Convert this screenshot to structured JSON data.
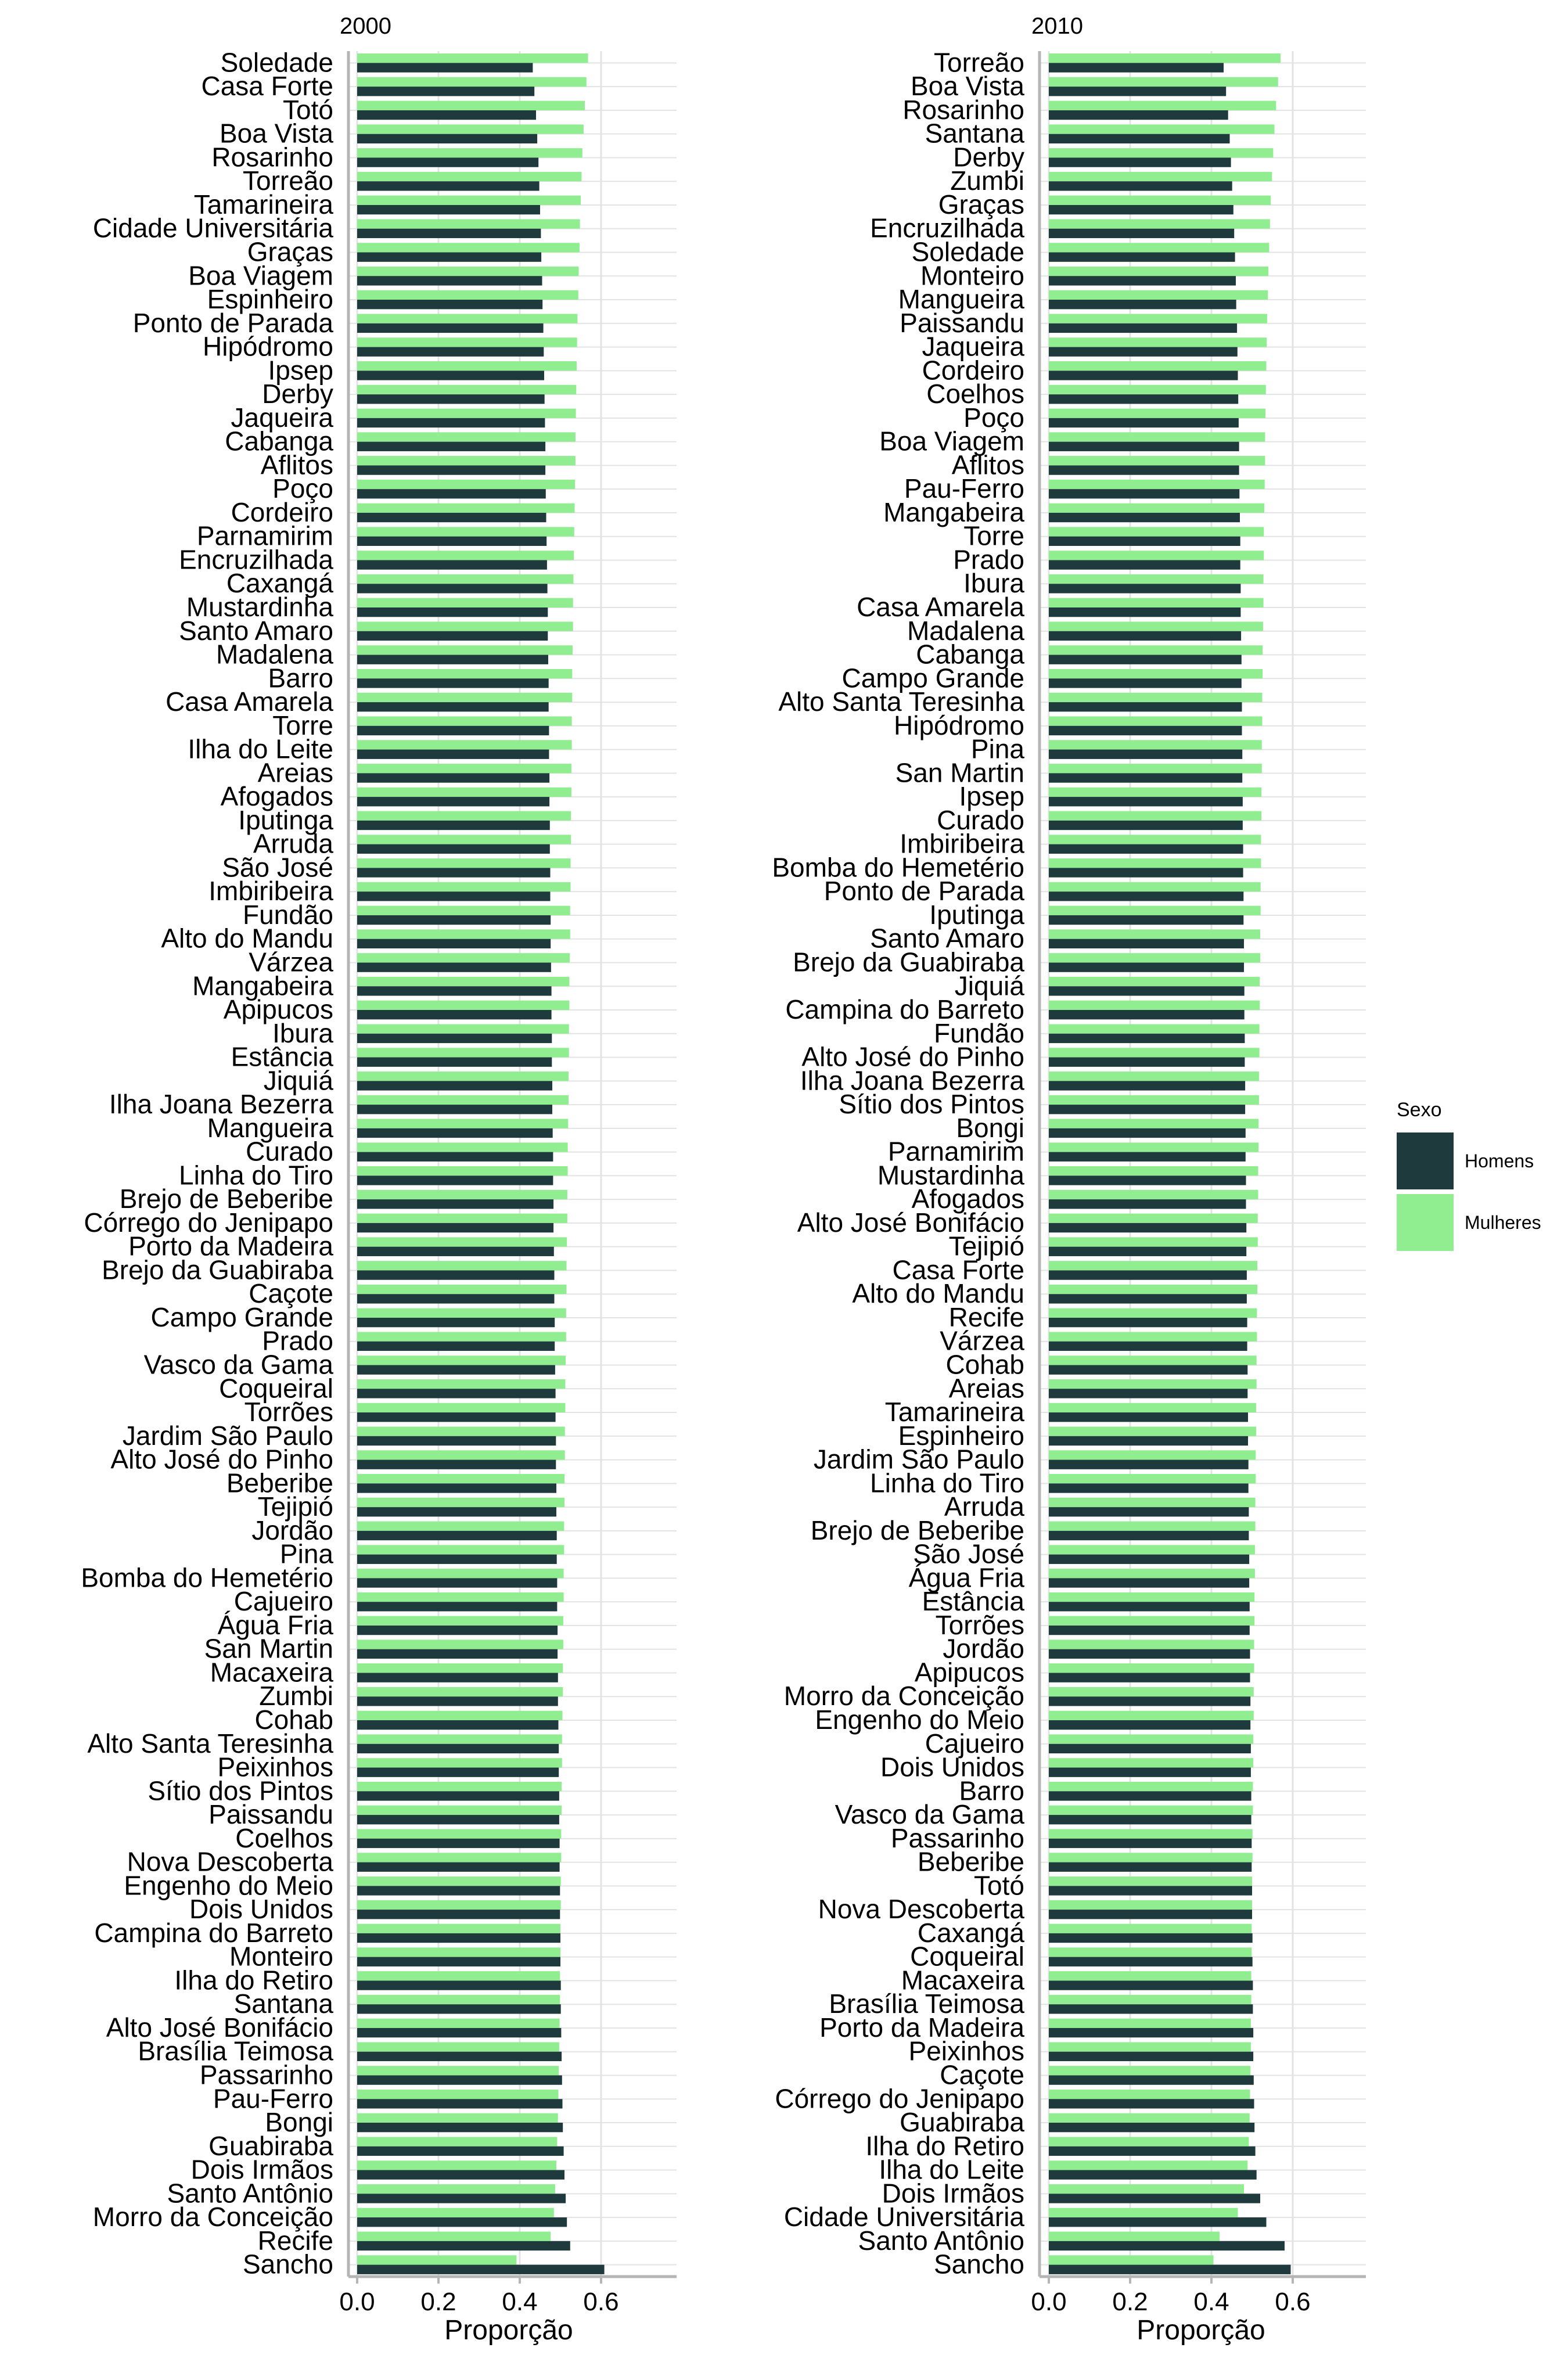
{
  "chart_data": [
    {
      "type": "bar",
      "orientation": "horizontal",
      "title": "2000",
      "xlabel": "Proporção",
      "xlim": [
        0.0,
        0.75
      ],
      "xticks": [
        0.0,
        0.2,
        0.4,
        0.6
      ],
      "xtick_labels": [
        "0.0",
        "0.2",
        "0.4",
        "0.6"
      ],
      "grid": true,
      "categories": [
        "Soledade",
        "Casa Forte",
        "Totó",
        "Boa Vista",
        "Rosarinho",
        "Torreão",
        "Tamarineira",
        "Cidade Universitária",
        "Graças",
        "Boa Viagem",
        "Espinheiro",
        "Ponto de Parada",
        "Hipódromo",
        "Ipsep",
        "Derby",
        "Jaqueira",
        "Cabanga",
        "Aflitos",
        "Poço",
        "Cordeiro",
        "Parnamirim",
        "Encruzilhada",
        "Caxangá",
        "Mustardinha",
        "Santo Amaro",
        "Madalena",
        "Barro",
        "Casa Amarela",
        "Torre",
        "Ilha do Leite",
        "Areias",
        "Afogados",
        "Iputinga",
        "Arruda",
        "São José",
        "Imbiribeira",
        "Fundão",
        "Alto do Mandu",
        "Várzea",
        "Mangabeira",
        "Apipucos",
        "Ibura",
        "Estância",
        "Jiquiá",
        "Ilha Joana Bezerra",
        "Mangueira",
        "Curado",
        "Linha do Tiro",
        "Brejo de Beberibe",
        "Córrego do Jenipapo",
        "Porto da Madeira",
        "Brejo da Guabiraba",
        "Caçote",
        "Campo Grande",
        "Prado",
        "Vasco da Gama",
        "Coqueiral",
        "Torrões",
        "Jardim São Paulo",
        "Alto José do Pinho",
        "Beberibe",
        "Tejipió",
        "Jordão",
        "Pina",
        "Bomba do Hemetério",
        "Cajueiro",
        "Água Fria",
        "San Martin",
        "Macaxeira",
        "Zumbi",
        "Cohab",
        "Alto Santa Teresinha",
        "Peixinhos",
        "Sítio dos Pintos",
        "Paissandu",
        "Coelhos",
        "Nova Descoberta",
        "Engenho do Meio",
        "Dois Unidos",
        "Campina do Barreto",
        "Monteiro",
        "Ilha do Retiro",
        "Santana",
        "Alto José Bonifácio",
        "Brasília Teimosa",
        "Passarinho",
        "Pau-Ferro",
        "Bongi",
        "Guabiraba",
        "Dois Irmãos",
        "Santo Antônio",
        "Morro da Conceição",
        "Recife",
        "Sancho"
      ],
      "series": [
        {
          "name": "Homens",
          "values": [
            0.432,
            0.436,
            0.44,
            0.443,
            0.446,
            0.448,
            0.45,
            0.452,
            0.453,
            0.455,
            0.456,
            0.458,
            0.459,
            0.46,
            0.461,
            0.462,
            0.463,
            0.463,
            0.464,
            0.465,
            0.466,
            0.467,
            0.468,
            0.469,
            0.469,
            0.47,
            0.471,
            0.471,
            0.472,
            0.472,
            0.473,
            0.473,
            0.474,
            0.474,
            0.475,
            0.475,
            0.476,
            0.476,
            0.477,
            0.478,
            0.478,
            0.479,
            0.479,
            0.48,
            0.48,
            0.481,
            0.482,
            0.482,
            0.483,
            0.483,
            0.484,
            0.485,
            0.485,
            0.486,
            0.486,
            0.487,
            0.488,
            0.488,
            0.489,
            0.489,
            0.49,
            0.49,
            0.491,
            0.491,
            0.492,
            0.492,
            0.493,
            0.493,
            0.494,
            0.494,
            0.495,
            0.496,
            0.496,
            0.497,
            0.497,
            0.498,
            0.498,
            0.499,
            0.499,
            0.5,
            0.5,
            0.501,
            0.501,
            0.502,
            0.503,
            0.504,
            0.505,
            0.506,
            0.508,
            0.51,
            0.513,
            0.516,
            0.524,
            0.608
          ]
        },
        {
          "name": "Mulheres",
          "values": [
            0.568,
            0.564,
            0.56,
            0.557,
            0.554,
            0.552,
            0.55,
            0.548,
            0.547,
            0.545,
            0.544,
            0.542,
            0.541,
            0.54,
            0.539,
            0.538,
            0.537,
            0.537,
            0.536,
            0.535,
            0.534,
            0.533,
            0.532,
            0.531,
            0.531,
            0.53,
            0.529,
            0.529,
            0.528,
            0.528,
            0.527,
            0.527,
            0.526,
            0.526,
            0.525,
            0.525,
            0.524,
            0.524,
            0.523,
            0.522,
            0.522,
            0.521,
            0.521,
            0.52,
            0.52,
            0.519,
            0.518,
            0.518,
            0.517,
            0.517,
            0.516,
            0.515,
            0.515,
            0.514,
            0.514,
            0.513,
            0.512,
            0.512,
            0.511,
            0.511,
            0.51,
            0.51,
            0.509,
            0.509,
            0.508,
            0.508,
            0.507,
            0.507,
            0.506,
            0.506,
            0.505,
            0.504,
            0.504,
            0.503,
            0.503,
            0.502,
            0.502,
            0.501,
            0.501,
            0.5,
            0.5,
            0.499,
            0.499,
            0.498,
            0.497,
            0.496,
            0.495,
            0.494,
            0.492,
            0.49,
            0.487,
            0.484,
            0.476,
            0.392
          ]
        }
      ]
    },
    {
      "type": "bar",
      "orientation": "horizontal",
      "title": "2010",
      "xlabel": "Proporção",
      "xlim": [
        0.0,
        0.8
      ],
      "xticks": [
        0.0,
        0.2,
        0.4,
        0.6
      ],
      "xtick_labels": [
        "0.0",
        "0.2",
        "0.4",
        "0.6"
      ],
      "grid": true,
      "categories": [
        "Torreão",
        "Boa Vista",
        "Rosarinho",
        "Santana",
        "Derby",
        "Zumbi",
        "Graças",
        "Encruzilhada",
        "Soledade",
        "Monteiro",
        "Mangueira",
        "Paissandu",
        "Jaqueira",
        "Cordeiro",
        "Coelhos",
        "Poço",
        "Boa Viagem",
        "Aflitos",
        "Pau-Ferro",
        "Mangabeira",
        "Torre",
        "Prado",
        "Ibura",
        "Casa Amarela",
        "Madalena",
        "Cabanga",
        "Campo Grande",
        "Alto Santa Teresinha",
        "Hipódromo",
        "Pina",
        "San Martin",
        "Ipsep",
        "Curado",
        "Imbiribeira",
        "Bomba do Hemetério",
        "Ponto de Parada",
        "Iputinga",
        "Santo Amaro",
        "Brejo da Guabiraba",
        "Jiquiá",
        "Campina do Barreto",
        "Fundão",
        "Alto José do Pinho",
        "Ilha Joana Bezerra",
        "Sítio dos Pintos",
        "Bongi",
        "Parnamirim",
        "Mustardinha",
        "Afogados",
        "Alto José Bonifácio",
        "Tejipió",
        "Casa Forte",
        "Alto do Mandu",
        "Recife",
        "Várzea",
        "Cohab",
        "Areias",
        "Tamarineira",
        "Espinheiro",
        "Jardim São Paulo",
        "Linha do Tiro",
        "Arruda",
        "Brejo de Beberibe",
        "São José",
        "Água Fria",
        "Estância",
        "Torrões",
        "Jordão",
        "Apipucos",
        "Morro da Conceição",
        "Engenho do Meio",
        "Cajueiro",
        "Dois Unidos",
        "Barro",
        "Vasco da Gama",
        "Passarinho",
        "Beberibe",
        "Totó",
        "Nova Descoberta",
        "Caxangá",
        "Coqueiral",
        "Macaxeira",
        "Brasília Teimosa",
        "Porto da Madeira",
        "Peixinhos",
        "Caçote",
        "Córrego do Jenipapo",
        "Guabiraba",
        "Ilha do Retiro",
        "Ilha do Leite",
        "Dois Irmãos",
        "Cidade Universitária",
        "Santo Antônio",
        "Sancho"
      ],
      "series": [
        {
          "name": "Homens",
          "values": [
            0.43,
            0.436,
            0.441,
            0.445,
            0.448,
            0.451,
            0.454,
            0.456,
            0.458,
            0.46,
            0.461,
            0.463,
            0.464,
            0.465,
            0.466,
            0.467,
            0.468,
            0.468,
            0.469,
            0.47,
            0.471,
            0.471,
            0.472,
            0.472,
            0.473,
            0.474,
            0.474,
            0.475,
            0.475,
            0.476,
            0.476,
            0.477,
            0.477,
            0.478,
            0.478,
            0.479,
            0.479,
            0.48,
            0.48,
            0.481,
            0.481,
            0.482,
            0.482,
            0.483,
            0.483,
            0.484,
            0.484,
            0.485,
            0.485,
            0.486,
            0.486,
            0.487,
            0.487,
            0.488,
            0.488,
            0.489,
            0.489,
            0.49,
            0.49,
            0.491,
            0.491,
            0.492,
            0.492,
            0.493,
            0.493,
            0.494,
            0.494,
            0.495,
            0.495,
            0.496,
            0.496,
            0.497,
            0.497,
            0.498,
            0.498,
            0.499,
            0.499,
            0.5,
            0.5,
            0.501,
            0.501,
            0.502,
            0.502,
            0.503,
            0.503,
            0.504,
            0.505,
            0.506,
            0.508,
            0.511,
            0.52,
            0.535,
            0.58,
            0.595
          ]
        },
        {
          "name": "Mulheres",
          "values": [
            0.57,
            0.564,
            0.559,
            0.555,
            0.552,
            0.549,
            0.546,
            0.544,
            0.542,
            0.54,
            0.539,
            0.537,
            0.536,
            0.535,
            0.534,
            0.533,
            0.532,
            0.532,
            0.531,
            0.53,
            0.529,
            0.529,
            0.528,
            0.528,
            0.527,
            0.526,
            0.526,
            0.525,
            0.525,
            0.524,
            0.524,
            0.523,
            0.523,
            0.522,
            0.522,
            0.521,
            0.521,
            0.52,
            0.52,
            0.519,
            0.519,
            0.518,
            0.518,
            0.517,
            0.517,
            0.516,
            0.516,
            0.515,
            0.515,
            0.514,
            0.514,
            0.513,
            0.513,
            0.512,
            0.512,
            0.511,
            0.511,
            0.51,
            0.51,
            0.509,
            0.509,
            0.508,
            0.508,
            0.507,
            0.507,
            0.506,
            0.506,
            0.505,
            0.505,
            0.504,
            0.504,
            0.503,
            0.503,
            0.502,
            0.502,
            0.501,
            0.501,
            0.5,
            0.5,
            0.499,
            0.499,
            0.498,
            0.498,
            0.497,
            0.497,
            0.496,
            0.495,
            0.494,
            0.492,
            0.489,
            0.48,
            0.465,
            0.42,
            0.405
          ]
        }
      ]
    }
  ],
  "legend": {
    "title": "Sexo",
    "position": "right",
    "items": [
      {
        "label": "Homens",
        "color": "#1f3a3d"
      },
      {
        "label": "Mulheres",
        "color": "#90ee90"
      }
    ]
  },
  "colors": {
    "background": "#ffffff",
    "grid": "#e3e3e3",
    "axis": "#b5b5b5",
    "text": "#000000"
  }
}
